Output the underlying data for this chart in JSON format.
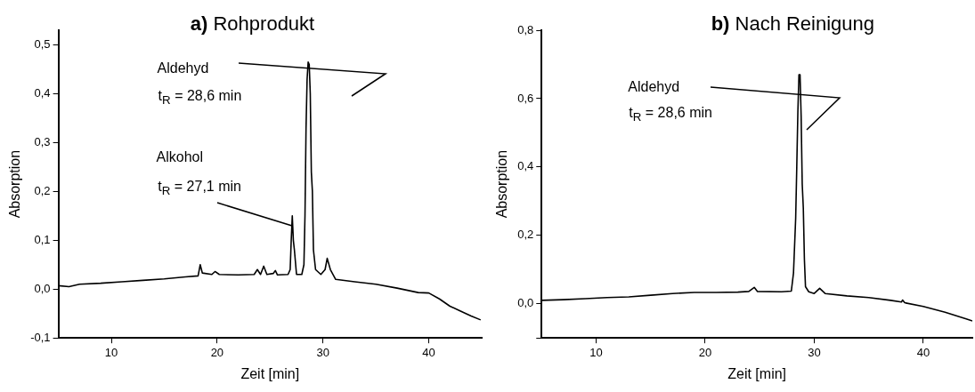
{
  "chart_data": [
    {
      "type": "line",
      "title": "a) Rohprodukt",
      "xlabel": "Zeit [min]",
      "ylabel": "Absorption",
      "x": [
        5,
        6,
        7,
        9,
        11,
        13,
        15,
        17,
        18.2,
        18.4,
        18.6,
        19.5,
        19.8,
        20.2,
        22,
        23.5,
        23.8,
        24.1,
        24.4,
        24.7,
        25.3,
        25.5,
        25.7,
        26.7,
        26.9,
        27.0,
        27.1,
        27.2,
        27.3,
        27.5,
        28.0,
        28.2,
        28.3,
        28.4,
        28.5,
        28.6,
        28.7,
        28.8,
        28.9,
        29.0,
        29.1,
        29.3,
        29.8,
        30.2,
        30.4,
        30.7,
        31.2,
        33,
        35,
        37,
        39,
        40,
        41,
        42,
        43,
        44,
        44.9
      ],
      "series": [
        {
          "color": "#000000",
          "values": [
            0.007,
            0.005,
            0.01,
            0.012,
            0.015,
            0.018,
            0.021,
            0.025,
            0.027,
            0.05,
            0.033,
            0.03,
            0.036,
            0.03,
            0.029,
            0.03,
            0.04,
            0.03,
            0.047,
            0.03,
            0.032,
            0.038,
            0.029,
            0.03,
            0.04,
            0.1,
            0.15,
            0.1,
            0.08,
            0.03,
            0.03,
            0.05,
            0.15,
            0.33,
            0.43,
            0.465,
            0.46,
            0.4,
            0.24,
            0.2,
            0.08,
            0.04,
            0.03,
            0.04,
            0.063,
            0.04,
            0.02,
            0.015,
            0.01,
            0.002,
            -0.007,
            -0.008,
            -0.02,
            -0.035,
            -0.045,
            -0.055,
            -0.063
          ]
        }
      ],
      "xlim": [
        5,
        45
      ],
      "xticks": [
        10,
        20,
        30,
        40
      ],
      "ylim": [
        -0.1,
        0.53
      ],
      "yticks": [
        {
          "value": -0.1,
          "label": "-0,1"
        },
        {
          "value": 0,
          "label": "0,0"
        },
        {
          "value": 0.1,
          "label": "0,1"
        },
        {
          "value": 0.2,
          "label": "0,2"
        },
        {
          "value": 0.3,
          "label": "0,3"
        },
        {
          "value": 0.4,
          "label": "0,4"
        },
        {
          "value": 0.5,
          "label": "0,5"
        }
      ],
      "annotations": [
        "Aldehyd",
        "t$_{R}$ = 28,6 min",
        "Alkohol",
        {
          "text": "t$_{R}$ = 27,1 min",
          "x": 27.1,
          "y": 0.13
        }
      ],
      "grid": false,
      "legend": false,
      "marker": "none",
      "line_style": "solid"
    },
    {
      "type": "line",
      "title": "b) Nach Reinigung",
      "xlabel": "Zeit [min]",
      "ylabel": "Absorption",
      "x": [
        5,
        7,
        9,
        11,
        13,
        15,
        17,
        19,
        21,
        23,
        24,
        24.5,
        24.8,
        27,
        27.9,
        28.1,
        28.3,
        28.4,
        28.5,
        28.6,
        28.7,
        28.8,
        28.9,
        29.0,
        29.1,
        29.2,
        29.5,
        30.0,
        30.5,
        31,
        33,
        35,
        37,
        38,
        38.1,
        38.3,
        40,
        42,
        44,
        44.5
      ],
      "series": [
        {
          "color": "#000000",
          "values": [
            0.01,
            0.012,
            0.015,
            0.018,
            0.02,
            0.025,
            0.03,
            0.033,
            0.033,
            0.034,
            0.036,
            0.048,
            0.036,
            0.035,
            0.037,
            0.09,
            0.25,
            0.4,
            0.56,
            0.67,
            0.67,
            0.55,
            0.35,
            0.28,
            0.13,
            0.05,
            0.035,
            0.03,
            0.045,
            0.03,
            0.023,
            0.018,
            0.01,
            0.005,
            0.011,
            0.003,
            -0.008,
            -0.025,
            -0.045,
            -0.05
          ]
        }
      ],
      "xlim": [
        5,
        44.5
      ],
      "xticks": [
        10,
        20,
        30,
        40
      ],
      "ylim": [
        -0.1,
        0.8
      ],
      "yticks": [
        {
          "value": -0.1,
          "label": null
        },
        {
          "value": 0,
          "label": "0,0"
        },
        {
          "value": 0.2,
          "label": "0,2"
        },
        {
          "value": 0.4,
          "label": "0,4"
        },
        {
          "value": 0.6,
          "label": "0,6"
        },
        {
          "value": 0.8,
          "label": "0,8"
        }
      ],
      "annotations": [
        "Aldehyd",
        "t$_{R}$ = 28,6 min"
      ],
      "grid": false,
      "legend": false,
      "marker": "none",
      "line_style": "solid"
    }
  ]
}
